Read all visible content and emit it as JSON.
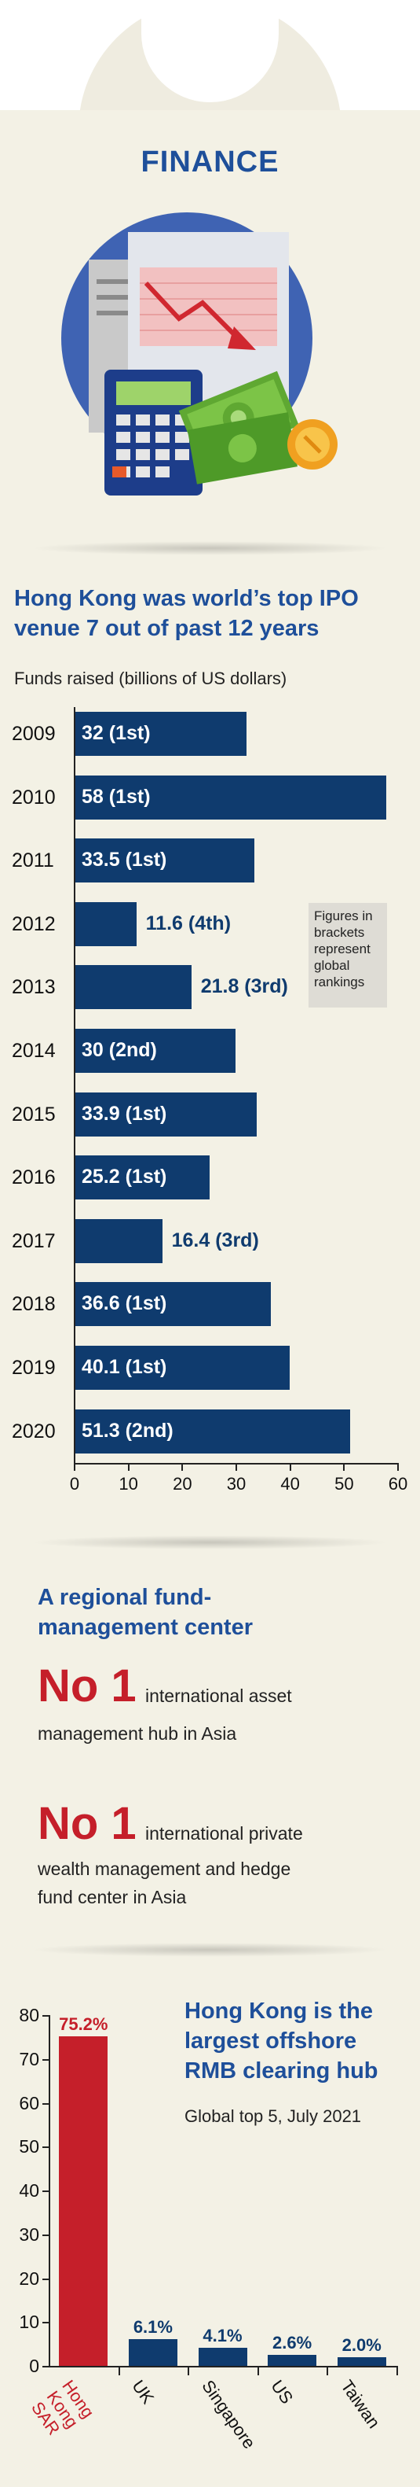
{
  "header": {
    "title": "FINANCE"
  },
  "ipo": {
    "heading_line1": "Hong Kong was world’s top IPO",
    "heading_line2": "venue 7 out of past 12 years",
    "subtitle": "Funds raised (billions of US dollars)",
    "note_lines": [
      "Figures in",
      "brackets",
      "represent",
      "global",
      "rankings"
    ]
  },
  "fund": {
    "heading_line1": "A regional fund-",
    "heading_line2": "management center",
    "item1_no": "No 1",
    "item1_line1": "international asset",
    "item1_line2": "management hub in Asia",
    "item2_no": "No 1",
    "item2_line1": "international private",
    "item2_line2": "wealth management and hedge",
    "item2_line3": "fund center in Asia"
  },
  "rmb": {
    "heading_line1": "Hong Kong is the",
    "heading_line2": "largest offshore",
    "heading_line3": "RMB clearing hub",
    "subtitle": "Global top 5, July 2021"
  },
  "colors": {
    "navy": "#0f3b6e",
    "red": "#c51f2a",
    "blue_heading": "#1e4f9a",
    "background": "#f3f1e5"
  },
  "chart_data": [
    {
      "type": "bar",
      "orientation": "horizontal",
      "title": "Hong Kong was world’s top IPO venue 7 out of past 12 years",
      "subtitle": "Funds raised (billions of US dollars)",
      "categories": [
        "2009",
        "2010",
        "2011",
        "2012",
        "2013",
        "2014",
        "2015",
        "2016",
        "2017",
        "2018",
        "2019",
        "2020"
      ],
      "values": [
        32,
        58,
        33.5,
        11.6,
        21.8,
        30,
        33.9,
        25.2,
        16.4,
        36.6,
        40.1,
        51.3
      ],
      "data_labels": [
        "32 (1st)",
        "58 (1st)",
        "33.5 (1st)",
        "11.6 (4th)",
        "21.8 (3rd)",
        "30 (2nd)",
        "33.9 (1st)",
        "25.2 (1st)",
        "16.4 (3rd)",
        "36.6 (1st)",
        "40.1 (1st)",
        "51.3 (2nd)"
      ],
      "xlim": [
        0,
        60
      ],
      "xticks": [
        "0",
        "10",
        "20",
        "30",
        "40",
        "50",
        "60"
      ],
      "grid": false
    },
    {
      "type": "bar",
      "orientation": "vertical",
      "title": "Hong Kong is the largest offshore RMB clearing hub",
      "subtitle": "Global top 5, July 2021",
      "categories": [
        "Hong Kong SAR",
        "UK",
        "Singapore",
        "US",
        "Taiwan"
      ],
      "values": [
        75.2,
        6.1,
        4.1,
        2.6,
        2.0
      ],
      "data_labels": [
        "75.2%",
        "6.1%",
        "4.1%",
        "2.6%",
        "2.0%"
      ],
      "highlight": "Hong Kong SAR",
      "ylim": [
        0,
        80
      ],
      "yticks": [
        "0",
        "10",
        "20",
        "30",
        "40",
        "50",
        "60",
        "70",
        "80"
      ],
      "grid": false
    }
  ]
}
